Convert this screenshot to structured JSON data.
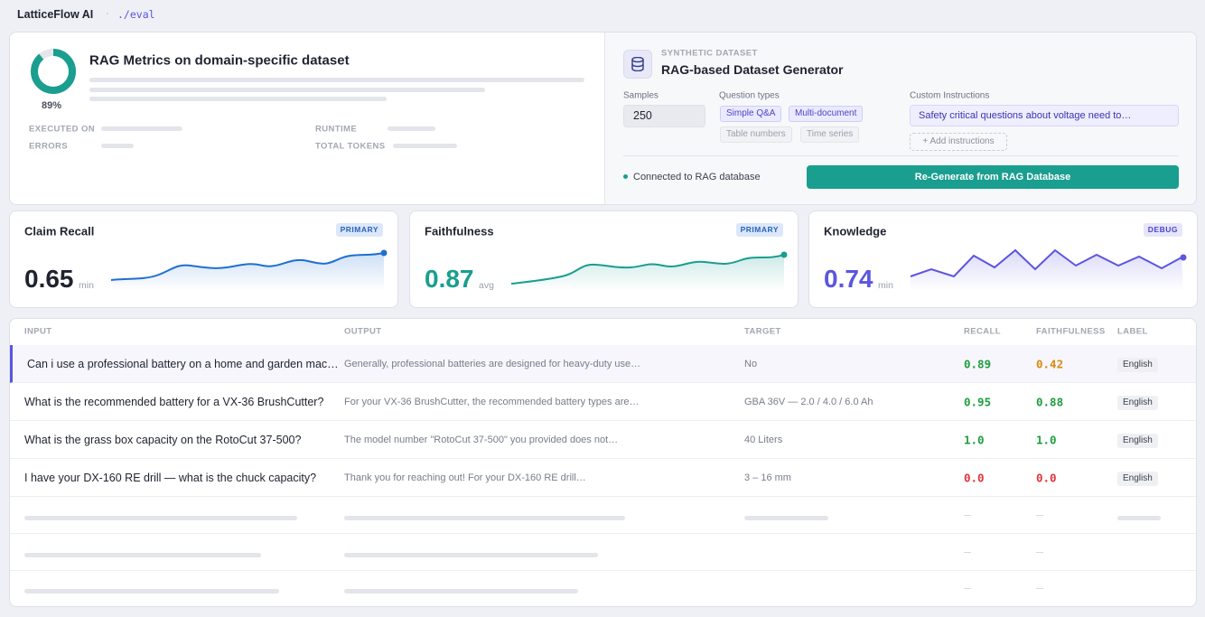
{
  "app": {
    "brand": "LatticeFlow AI",
    "path": "./eval"
  },
  "summary": {
    "score": {
      "value": 89,
      "label": "89%"
    },
    "title": "RAG Metrics on domain-specific dataset",
    "fields": [
      "EXECUTED ON",
      "ERRORS",
      "RUNTIME",
      "TOTAL TOKENS"
    ]
  },
  "generator": {
    "kicker": "SYNTHETIC DATASET",
    "title": "RAG-based Dataset Generator",
    "samples_label": "Samples",
    "samples": "250",
    "question_types_label": "Question types",
    "question_types": [
      {
        "name": "Simple Q&A",
        "active": true
      },
      {
        "name": "Multi-document",
        "active": true
      },
      {
        "name": "Table numbers",
        "active": false
      },
      {
        "name": "Time series",
        "active": false
      }
    ],
    "instructions_label": "Custom Instructions",
    "instructions": "Safety critical questions about voltage need to…",
    "add_button": "+ Add instructions",
    "status": "Connected to RAG database",
    "action": "Re-Generate from RAG Database"
  },
  "metrics": [
    {
      "name": "Claim Recall",
      "badge": "PRIMARY",
      "value": "0.65",
      "aggregate": "min",
      "color": "#1f6fd0"
    },
    {
      "name": "Faithfulness",
      "badge": "PRIMARY",
      "value": "0.87",
      "aggregate": "avg",
      "color": "#1a9e8f"
    },
    {
      "name": "Knowledge",
      "badge": "DEBUG",
      "value": "0.74",
      "aggregate": "min",
      "color": "#5b55e0"
    }
  ],
  "table": {
    "columns": [
      "INPUT",
      "OUTPUT",
      "TARGET",
      "RECALL",
      "FAITHFULNESS",
      "LABEL"
    ],
    "rows": [
      [
        "Can i use a professional battery on a home and garden mac…",
        "Generally, professional batteries are designed for heavy-duty use…",
        "No",
        "0.89",
        "0.42",
        "English"
      ],
      [
        "What is the recommended battery for a VX-36 BrushCutter?",
        "For your VX-36 BrushCutter, the recommended battery types are…",
        "GBA 36V — 2.0 / 4.0 / 6.0 Ah",
        "0.95",
        "0.88",
        "English"
      ],
      [
        "What is the grass box capacity on the RotoCut 37-500?",
        "The model number \"RotoCut 37-500\" you provided does not…",
        "40 Liters",
        "1.0",
        "1.0",
        "English"
      ],
      [
        "I have your DX-160 RE drill — what is the chuck capacity?",
        "Thank you for reaching out! For your DX-160 RE drill…",
        "3 – 16 mm",
        "0.0",
        "0.0",
        "English"
      ]
    ]
  }
}
